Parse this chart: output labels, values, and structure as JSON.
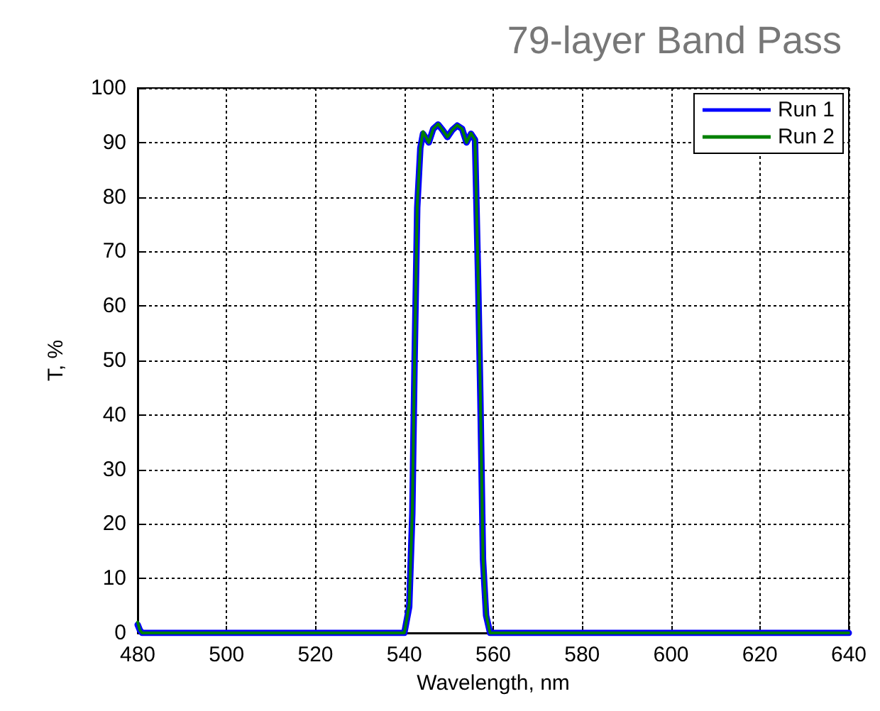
{
  "chart_data": {
    "type": "line",
    "title": "79-layer Band Pass",
    "xlabel": "Wavelength, nm",
    "ylabel": "T, %",
    "xlim": [
      480,
      640
    ],
    "xticks": [
      480,
      500,
      520,
      540,
      560,
      580,
      600,
      620,
      640
    ],
    "ylim": [
      0,
      100
    ],
    "yticks": [
      0,
      10,
      20,
      30,
      40,
      50,
      60,
      70,
      80,
      90,
      100
    ],
    "grid": true,
    "legend": "top right",
    "marker": "none",
    "line_style": "solid",
    "series": [
      {
        "name": "Run 1",
        "color": "#0000ff",
        "x": [
          480,
          480.5,
          481,
          500,
          520,
          540,
          540.2,
          541.1,
          541.8,
          542.3,
          542.9,
          543.6,
          544.2,
          545.5,
          546.5,
          547.6,
          548.6,
          549.7,
          550.8,
          551.9,
          553,
          554,
          555,
          555.9,
          556.6,
          557.1,
          557.7,
          558.4,
          559.3,
          580,
          600,
          620,
          640
        ],
        "values": [
          1.5,
          0.5,
          0,
          0,
          0,
          0,
          0,
          4.8,
          22,
          49.5,
          78,
          89,
          91.6,
          90,
          92.5,
          93.3,
          92.3,
          91,
          92.3,
          93.1,
          92.5,
          90,
          91.6,
          90.5,
          65,
          43.5,
          13.5,
          3.2,
          0,
          0,
          0,
          0,
          0
        ]
      },
      {
        "name": "Run 2",
        "color": "#008000",
        "x": [
          480,
          480.5,
          481,
          500,
          520,
          540,
          540.2,
          541.1,
          541.8,
          542.3,
          542.9,
          543.6,
          544.2,
          545.5,
          546.5,
          547.6,
          548.6,
          549.7,
          550.8,
          551.9,
          553,
          554,
          555,
          555.9,
          556.6,
          557.1,
          557.7,
          558.4,
          559.3,
          580,
          600,
          620,
          640
        ],
        "values": [
          2,
          0.5,
          0,
          0,
          0,
          0,
          0,
          5.2,
          22.4,
          50,
          78.4,
          89,
          92,
          90,
          92.5,
          93.4,
          92.3,
          91,
          92.3,
          93.2,
          92.5,
          90,
          91.7,
          90.5,
          65.4,
          43.9,
          13.8,
          3.4,
          0,
          0,
          0,
          0,
          0
        ]
      }
    ]
  }
}
